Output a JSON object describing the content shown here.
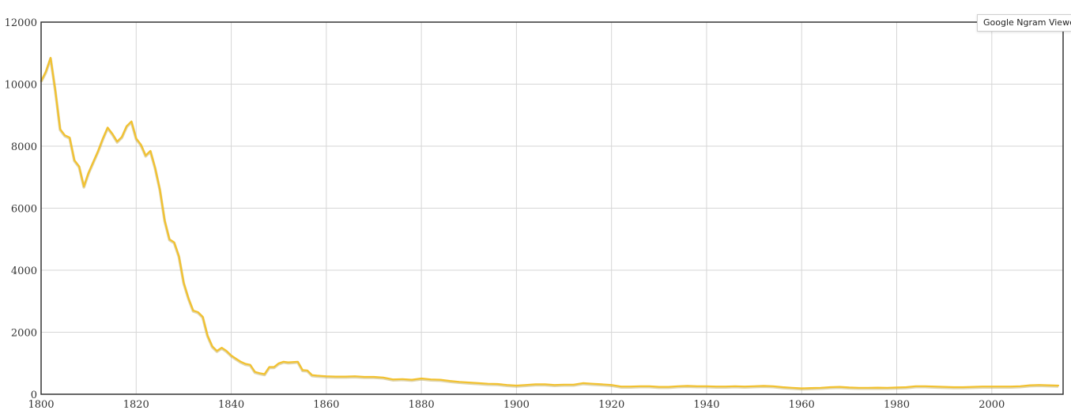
{
  "watermark": {
    "label": "Google Ngram Viewer"
  },
  "colors": {
    "series": "#f2c12e",
    "grid": "#d6d6d6",
    "frame": "#333333"
  },
  "chart_data": {
    "type": "line",
    "title": "",
    "xlabel": "",
    "ylabel": "",
    "xlim": [
      1800,
      2015
    ],
    "ylim": [
      0,
      12000
    ],
    "x_ticks": [
      1800,
      1820,
      1840,
      1860,
      1880,
      1900,
      1920,
      1940,
      1960,
      1980,
      2000
    ],
    "y_ticks": [
      0,
      2000,
      4000,
      6000,
      8000,
      10000,
      12000
    ],
    "grid": true,
    "legend": "none",
    "series": [
      {
        "color": "#f2c12e",
        "x": [
          1800,
          1801,
          1802,
          1803,
          1804,
          1805,
          1806,
          1807,
          1808,
          1809,
          1810,
          1811,
          1812,
          1813,
          1814,
          1815,
          1816,
          1817,
          1818,
          1819,
          1820,
          1821,
          1822,
          1823,
          1824,
          1825,
          1826,
          1827,
          1828,
          1829,
          1830,
          1831,
          1832,
          1833,
          1834,
          1835,
          1836,
          1837,
          1838,
          1839,
          1840,
          1841,
          1842,
          1843,
          1844,
          1845,
          1846,
          1847,
          1848,
          1849,
          1850,
          1851,
          1852,
          1853,
          1854,
          1855,
          1856,
          1857,
          1858,
          1859,
          1860,
          1862,
          1864,
          1866,
          1868,
          1870,
          1872,
          1874,
          1876,
          1878,
          1880,
          1882,
          1884,
          1886,
          1888,
          1890,
          1892,
          1894,
          1896,
          1898,
          1900,
          1902,
          1904,
          1906,
          1908,
          1910,
          1912,
          1914,
          1916,
          1918,
          1920,
          1922,
          1924,
          1926,
          1928,
          1930,
          1932,
          1934,
          1936,
          1938,
          1940,
          1942,
          1944,
          1946,
          1948,
          1950,
          1952,
          1954,
          1956,
          1958,
          1960,
          1962,
          1964,
          1966,
          1968,
          1970,
          1972,
          1974,
          1976,
          1978,
          1980,
          1982,
          1984,
          1986,
          1988,
          1990,
          1992,
          1994,
          1996,
          1998,
          2000,
          2002,
          2004,
          2006,
          2008,
          2010,
          2012,
          2014
        ],
        "values": [
          10100,
          10400,
          10850,
          9800,
          8550,
          8350,
          8280,
          7550,
          7350,
          6700,
          7150,
          7500,
          7850,
          8250,
          8600,
          8400,
          8150,
          8300,
          8650,
          8800,
          8250,
          8050,
          7700,
          7850,
          7300,
          6600,
          5600,
          5000,
          4900,
          4450,
          3600,
          3100,
          2700,
          2650,
          2500,
          1900,
          1550,
          1400,
          1500,
          1400,
          1250,
          1150,
          1050,
          980,
          950,
          720,
          680,
          650,
          880,
          880,
          1000,
          1050,
          1030,
          1040,
          1050,
          780,
          770,
          620,
          600,
          590,
          580,
          570,
          570,
          580,
          560,
          560,
          540,
          480,
          490,
          470,
          510,
          480,
          470,
          430,
          400,
          380,
          360,
          340,
          330,
          300,
          280,
          300,
          320,
          320,
          300,
          310,
          310,
          360,
          340,
          320,
          300,
          250,
          250,
          260,
          260,
          240,
          240,
          260,
          270,
          260,
          260,
          250,
          250,
          260,
          250,
          260,
          270,
          260,
          230,
          210,
          190,
          200,
          210,
          230,
          240,
          220,
          210,
          210,
          215,
          210,
          220,
          230,
          260,
          260,
          250,
          240,
          230,
          230,
          240,
          250,
          250,
          250,
          250,
          260,
          290,
          300,
          290,
          280
        ]
      }
    ]
  }
}
